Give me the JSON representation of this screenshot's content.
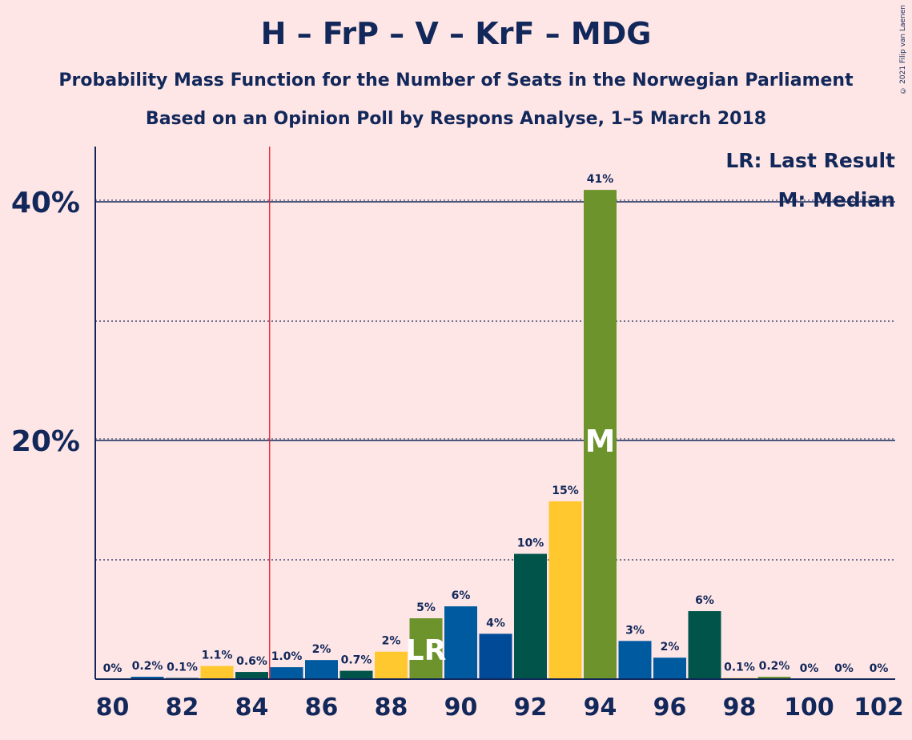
{
  "title": "H – FrP – V – KrF – MDG",
  "subtitle1": "Probability Mass Function for the Number of Seats in the Norwegian Parliament",
  "subtitle2": "Based on an Opinion Poll by Respons Analyse, 1–5 March 2018",
  "copyright": "© 2021 Filip van Laenen",
  "legend": {
    "lr": "LR: Last Result",
    "m": "M: Median"
  },
  "chart_data": {
    "type": "bar",
    "xlim": [
      80,
      102
    ],
    "ylim": [
      0,
      45
    ],
    "x_ticks": [
      80,
      82,
      84,
      86,
      88,
      90,
      92,
      94,
      96,
      98,
      100,
      102
    ],
    "y_ticks": [
      {
        "value": 20,
        "label": "20%"
      },
      {
        "value": 40,
        "label": "40%"
      }
    ],
    "x": [
      80,
      81,
      82,
      83,
      84,
      85,
      86,
      87,
      88,
      89,
      90,
      91,
      92,
      93,
      94,
      95,
      96,
      97,
      98,
      99,
      100,
      101,
      102
    ],
    "values": [
      0,
      0.2,
      0.1,
      1.1,
      0.6,
      1.0,
      1.6,
      0.7,
      2.3,
      5.1,
      6.1,
      3.8,
      10.5,
      14.9,
      41.0,
      3.2,
      1.8,
      5.7,
      0.1,
      0.2,
      0,
      0,
      0
    ],
    "labels": [
      "0%",
      "0.2%",
      "0.1%",
      "1.1%",
      "0.6%",
      "1.0%",
      "2%",
      "0.7%",
      "2%",
      "5%",
      "6%",
      "4%",
      "10%",
      "15%",
      "41%",
      "3%",
      "2%",
      "6%",
      "0.1%",
      "0.2%",
      "0%",
      "0%",
      "0%"
    ],
    "colors": [
      "#005AA0",
      "#005AA0",
      "#00544A",
      "#FFC82F",
      "#00544A",
      "#005AA0",
      "#005AA0",
      "#00544A",
      "#FFC82F",
      "#6C932C",
      "#005AA0",
      "#004A98",
      "#00544A",
      "#FFC82F",
      "#6C932C",
      "#005AA0",
      "#005AA0",
      "#00544A",
      "#FFC82F",
      "#6C932C",
      "#005AA0",
      "#004A98",
      "#00544A"
    ],
    "last_result": 89,
    "majority_line": 84.5,
    "median": 94,
    "lr_label": "LR",
    "median_label": "M"
  }
}
